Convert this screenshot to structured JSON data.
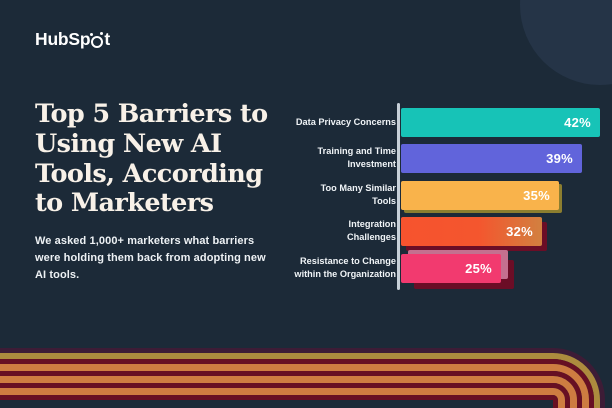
{
  "brand": {
    "logo_text_before": "HubSp",
    "logo_text_after": "t",
    "logo_full": "HubSpot"
  },
  "header": {
    "title": "Top 5 Barriers to Using New AI Tools, According to Marketers",
    "title_lines": [
      "Top 5 Barriers to",
      "Using New AI",
      "Tools, According",
      "to Marketers"
    ],
    "subtitle": "We asked 1,000+ marketers what barriers were holding them back from adopting new AI tools.",
    "subtitle_lines": [
      "We asked 1,000+ marketers what barriers",
      "were holding them back from adopting new",
      "AI tools."
    ]
  },
  "chart_data": {
    "type": "bar",
    "orientation": "horizontal",
    "title": "Top 5 Barriers to Using New AI Tools, According to Marketers",
    "categories": [
      "Data Privacy Concerns",
      "Training and Time Investment",
      "Too Many Similar Tools",
      "Integration Challenges",
      "Resistance to Change within the Organization"
    ],
    "label_lines": [
      [
        "Data Privacy Concerns"
      ],
      [
        "Training and Time",
        "Investment"
      ],
      [
        "Too Many Similar",
        "Tools"
      ],
      [
        "Integration",
        "Challenges"
      ],
      [
        "Resistance to Change",
        "within the Organization"
      ]
    ],
    "values": [
      42,
      39,
      35,
      32,
      25
    ],
    "data_labels": [
      "42%",
      "39%",
      "35%",
      "32%",
      "25%"
    ],
    "value_suffix": "%",
    "bar_colors": [
      "#17C3B7",
      "#6164DB",
      "#F9B34B",
      "#F4562E",
      "#F23A6F"
    ],
    "grid": false,
    "legend": false,
    "axis_baseline_color": "#C7D0D8"
  },
  "decor": {
    "background_color": "#1C2A38",
    "circle_color": "#253447",
    "stripes": [
      {
        "color": "#3D1C36",
        "w": 5
      },
      {
        "color": "#AC8B3E",
        "w": 6
      },
      {
        "color": "#670F23",
        "w": 5
      },
      {
        "color": "#CE7C41",
        "w": 7
      },
      {
        "color": "#670F23",
        "w": 5
      },
      {
        "color": "#CE7C41",
        "w": 7
      },
      {
        "color": "#670F23",
        "w": 5
      },
      {
        "color": "#CE7C41",
        "w": 7
      },
      {
        "color": "#670F23",
        "w": 5
      }
    ]
  }
}
